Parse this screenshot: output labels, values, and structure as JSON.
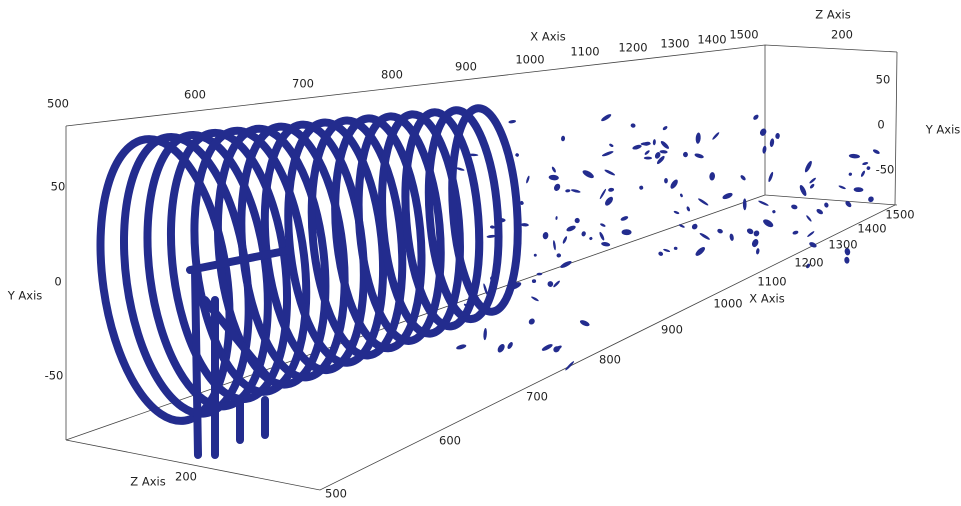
{
  "axes": {
    "top_x": {
      "title": "X Axis",
      "ticks": [
        500,
        600,
        700,
        800,
        900,
        1000,
        1100,
        1200,
        1300,
        1400,
        1500
      ]
    },
    "left_y": {
      "title": "Y Axis",
      "ticks": [
        50,
        0,
        -50
      ]
    },
    "bottom_z": {
      "title": "Z Axis",
      "ticks": [
        200
      ]
    },
    "bottom_x": {
      "title": "X Axis",
      "ticks": [
        500,
        600,
        700,
        800,
        900,
        1000,
        1100,
        1200,
        1300,
        1400,
        1500
      ]
    },
    "right_y": {
      "title": "Y Axis",
      "ticks": [
        50,
        0,
        -50
      ]
    },
    "top_z": {
      "title": "Z Axis",
      "ticks": [
        200
      ]
    }
  }
}
